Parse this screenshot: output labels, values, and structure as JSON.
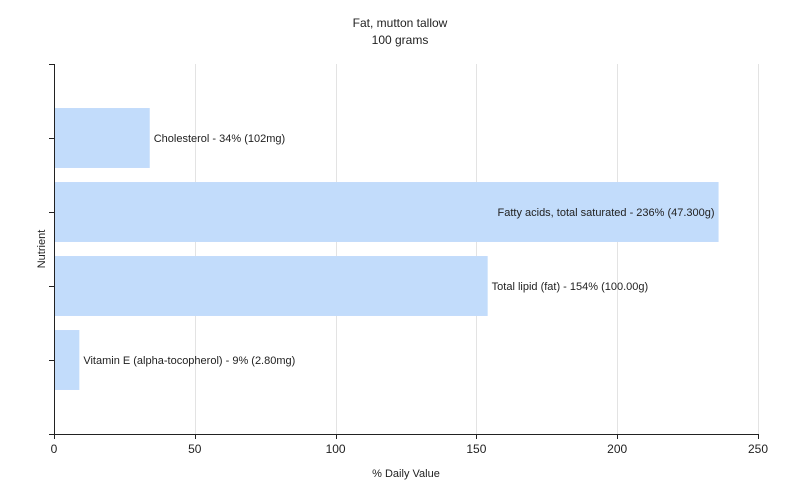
{
  "chart_data": {
    "type": "bar",
    "orientation": "horizontal",
    "title": "Fat, mutton tallow",
    "subtitle": "100 grams",
    "xlabel": "% Daily Value",
    "ylabel": "Nutrient",
    "xlim": [
      0,
      250
    ],
    "xticks": [
      0,
      50,
      100,
      150,
      200,
      250
    ],
    "grid": true,
    "bar_color": "#c2dcfb",
    "categories": [
      "Cholesterol",
      "Fatty acids, total saturated",
      "Total lipid (fat)",
      "Vitamin E (alpha-tocopherol)"
    ],
    "values": [
      34,
      236,
      154,
      9
    ],
    "labels": [
      "Cholesterol - 34% (102mg)",
      "Fatty acids, total saturated - 236% (47.300g)",
      "Total lipid (fat) - 154% (100.00g)",
      "Vitamin E (alpha-tocopherol) - 9% (2.80mg)"
    ]
  }
}
